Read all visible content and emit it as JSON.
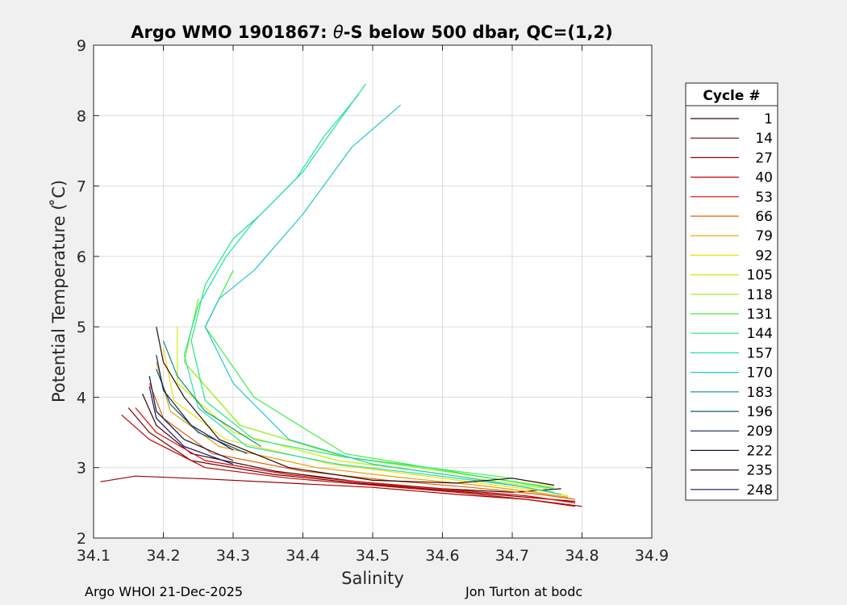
{
  "chart_data": {
    "type": "line",
    "title": "Argo WMO 1901867: θ-S below 500 dbar,  QC=(1,2)",
    "title_parts": {
      "prefix": "Argo WMO 1901867: ",
      "symbol": "θ",
      "suffix": "-S below 500 dbar,  QC=(1,2)"
    },
    "xlabel": "Salinity",
    "ylabel": "Potential Temperature ( ̊C)",
    "xlim": [
      34.1,
      34.9
    ],
    "ylim": [
      2,
      9
    ],
    "x_ticks": [
      34.1,
      34.2,
      34.3,
      34.4,
      34.5,
      34.6,
      34.7,
      34.8,
      34.9
    ],
    "y_ticks": [
      2,
      3,
      4,
      5,
      6,
      7,
      8,
      9
    ],
    "x_tick_labels": [
      "34.1",
      "34.2",
      "34.3",
      "34.4",
      "34.5",
      "34.6",
      "34.7",
      "34.8",
      "34.9"
    ],
    "y_tick_labels": [
      "2",
      "3",
      "4",
      "5",
      "6",
      "7",
      "8",
      "9"
    ],
    "grid": true,
    "legend_title": "Cycle #",
    "legend_position": "right",
    "series": [
      {
        "name": "1",
        "color": "#3a0000",
        "points": [
          [
            34.17,
            4.05
          ],
          [
            34.19,
            3.6
          ],
          [
            34.24,
            3.2
          ],
          [
            34.36,
            2.95
          ],
          [
            34.48,
            2.8
          ],
          [
            34.6,
            2.7
          ],
          [
            34.7,
            2.65
          ],
          [
            34.77,
            2.7
          ]
        ]
      },
      {
        "name": "14",
        "color": "#6e0000",
        "points": [
          [
            34.15,
            3.85
          ],
          [
            34.18,
            3.5
          ],
          [
            34.24,
            3.1
          ],
          [
            34.36,
            2.9
          ],
          [
            34.48,
            2.78
          ],
          [
            34.6,
            2.68
          ],
          [
            34.72,
            2.58
          ],
          [
            34.79,
            2.52
          ]
        ]
      },
      {
        "name": "27",
        "color": "#a00000",
        "points": [
          [
            34.11,
            2.8
          ],
          [
            34.16,
            2.88
          ],
          [
            34.26,
            2.84
          ],
          [
            34.38,
            2.78
          ],
          [
            34.5,
            2.72
          ],
          [
            34.62,
            2.62
          ],
          [
            34.72,
            2.55
          ],
          [
            34.8,
            2.45
          ]
        ]
      },
      {
        "name": "40",
        "color": "#c80000",
        "points": [
          [
            34.14,
            3.75
          ],
          [
            34.18,
            3.4
          ],
          [
            34.26,
            3.0
          ],
          [
            34.38,
            2.85
          ],
          [
            34.5,
            2.75
          ],
          [
            34.62,
            2.65
          ],
          [
            34.72,
            2.55
          ],
          [
            34.79,
            2.45
          ]
        ]
      },
      {
        "name": "53",
        "color": "#e00000",
        "points": [
          [
            34.16,
            3.85
          ],
          [
            34.19,
            3.5
          ],
          [
            34.26,
            3.1
          ],
          [
            34.38,
            2.9
          ],
          [
            34.5,
            2.78
          ],
          [
            34.62,
            2.68
          ],
          [
            34.72,
            2.6
          ],
          [
            34.79,
            2.5
          ]
        ]
      },
      {
        "name": "66",
        "color": "#e06000",
        "points": [
          [
            34.18,
            4.2
          ],
          [
            34.2,
            3.7
          ],
          [
            34.27,
            3.2
          ],
          [
            34.4,
            2.95
          ],
          [
            34.52,
            2.82
          ],
          [
            34.64,
            2.72
          ],
          [
            34.74,
            2.62
          ],
          [
            34.79,
            2.55
          ]
        ]
      },
      {
        "name": "79",
        "color": "#e8a000",
        "points": [
          [
            34.19,
            4.5
          ],
          [
            34.21,
            3.8
          ],
          [
            34.28,
            3.3
          ],
          [
            34.42,
            3.0
          ],
          [
            34.54,
            2.86
          ],
          [
            34.66,
            2.74
          ],
          [
            34.74,
            2.64
          ],
          [
            34.78,
            2.58
          ]
        ]
      },
      {
        "name": "92",
        "color": "#f0e000",
        "points": [
          [
            34.2,
            4.7
          ],
          [
            34.215,
            3.95
          ],
          [
            34.29,
            3.4
          ],
          [
            34.44,
            3.05
          ],
          [
            34.56,
            2.9
          ],
          [
            34.67,
            2.76
          ],
          [
            34.75,
            2.66
          ],
          [
            34.78,
            2.6
          ]
        ]
      },
      {
        "name": "105",
        "color": "#c8f000",
        "points": [
          [
            34.22,
            5.0
          ],
          [
            34.22,
            4.2
          ],
          [
            34.3,
            3.5
          ],
          [
            34.45,
            3.1
          ],
          [
            34.57,
            2.95
          ],
          [
            34.68,
            2.8
          ],
          [
            34.75,
            2.7
          ]
        ]
      },
      {
        "name": "118",
        "color": "#8ef000",
        "points": [
          [
            34.25,
            5.4
          ],
          [
            34.23,
            4.5
          ],
          [
            34.31,
            3.6
          ],
          [
            34.46,
            3.15
          ],
          [
            34.58,
            2.98
          ],
          [
            34.69,
            2.82
          ],
          [
            34.76,
            2.72
          ]
        ]
      },
      {
        "name": "131",
        "color": "#40f040",
        "points": [
          [
            34.3,
            5.8
          ],
          [
            34.26,
            5.0
          ],
          [
            34.33,
            4.0
          ],
          [
            34.46,
            3.2
          ],
          [
            34.58,
            3.0
          ],
          [
            34.7,
            2.85
          ],
          [
            34.76,
            2.75
          ]
        ]
      },
      {
        "name": "144",
        "color": "#20e880",
        "points": [
          [
            34.49,
            8.45
          ],
          [
            34.45,
            7.9
          ],
          [
            34.4,
            7.2
          ],
          [
            34.34,
            6.6
          ],
          [
            34.3,
            6.25
          ],
          [
            34.26,
            5.6
          ],
          [
            34.24,
            4.8
          ],
          [
            34.26,
            3.95
          ],
          [
            34.33,
            3.4
          ],
          [
            34.46,
            3.15
          ],
          [
            34.58,
            3.0
          ],
          [
            34.7,
            2.8
          ],
          [
            34.76,
            2.7
          ]
        ]
      },
      {
        "name": "157",
        "color": "#20e0b0",
        "points": [
          [
            34.48,
            8.3
          ],
          [
            34.43,
            7.7
          ],
          [
            34.39,
            7.1
          ],
          [
            34.33,
            6.5
          ],
          [
            34.29,
            6.0
          ],
          [
            34.25,
            5.3
          ],
          [
            34.23,
            4.6
          ],
          [
            34.25,
            3.85
          ],
          [
            34.32,
            3.3
          ],
          [
            34.45,
            3.05
          ],
          [
            34.58,
            2.9
          ],
          [
            34.7,
            2.75
          ],
          [
            34.76,
            2.65
          ]
        ]
      },
      {
        "name": "170",
        "color": "#20c8c8",
        "points": [
          [
            34.54,
            8.15
          ],
          [
            34.47,
            7.55
          ],
          [
            34.4,
            6.6
          ],
          [
            34.33,
            5.8
          ],
          [
            34.28,
            5.4
          ],
          [
            34.26,
            5.0
          ],
          [
            34.3,
            4.2
          ],
          [
            34.38,
            3.4
          ],
          [
            34.5,
            3.05
          ],
          [
            34.62,
            2.88
          ],
          [
            34.72,
            2.72
          ],
          [
            34.77,
            2.62
          ]
        ]
      },
      {
        "name": "183",
        "color": "#108c8c",
        "points": [
          [
            34.2,
            4.8
          ],
          [
            34.22,
            4.3
          ],
          [
            34.26,
            3.8
          ],
          [
            34.34,
            3.3
          ]
        ]
      },
      {
        "name": "196",
        "color": "#0a5a6e",
        "points": [
          [
            34.19,
            4.4
          ],
          [
            34.21,
            3.9
          ],
          [
            34.25,
            3.5
          ],
          [
            34.32,
            3.2
          ]
        ]
      },
      {
        "name": "209",
        "color": "#10205a",
        "points": [
          [
            34.19,
            4.6
          ],
          [
            34.2,
            4.1
          ],
          [
            34.24,
            3.6
          ],
          [
            34.3,
            3.25
          ]
        ]
      },
      {
        "name": "222",
        "color": "#101040",
        "points": [
          [
            34.18,
            4.3
          ],
          [
            34.19,
            3.8
          ],
          [
            34.23,
            3.4
          ],
          [
            34.3,
            3.1
          ]
        ]
      },
      {
        "name": "235",
        "color": "#2a0a10",
        "points": [
          [
            34.19,
            5.0
          ],
          [
            34.2,
            4.5
          ],
          [
            34.23,
            4.0
          ],
          [
            34.28,
            3.4
          ],
          [
            34.38,
            3.0
          ],
          [
            34.5,
            2.82
          ],
          [
            34.62,
            2.78
          ],
          [
            34.7,
            2.85
          ],
          [
            34.76,
            2.75
          ]
        ]
      },
      {
        "name": "248",
        "color": "#101070",
        "points": [
          [
            34.18,
            4.15
          ],
          [
            34.19,
            3.7
          ],
          [
            34.23,
            3.3
          ],
          [
            34.3,
            3.05
          ]
        ]
      }
    ]
  },
  "footer": {
    "left": "Argo WHOI 21-Dec-2025",
    "right": "Jon Turton at bodc"
  }
}
